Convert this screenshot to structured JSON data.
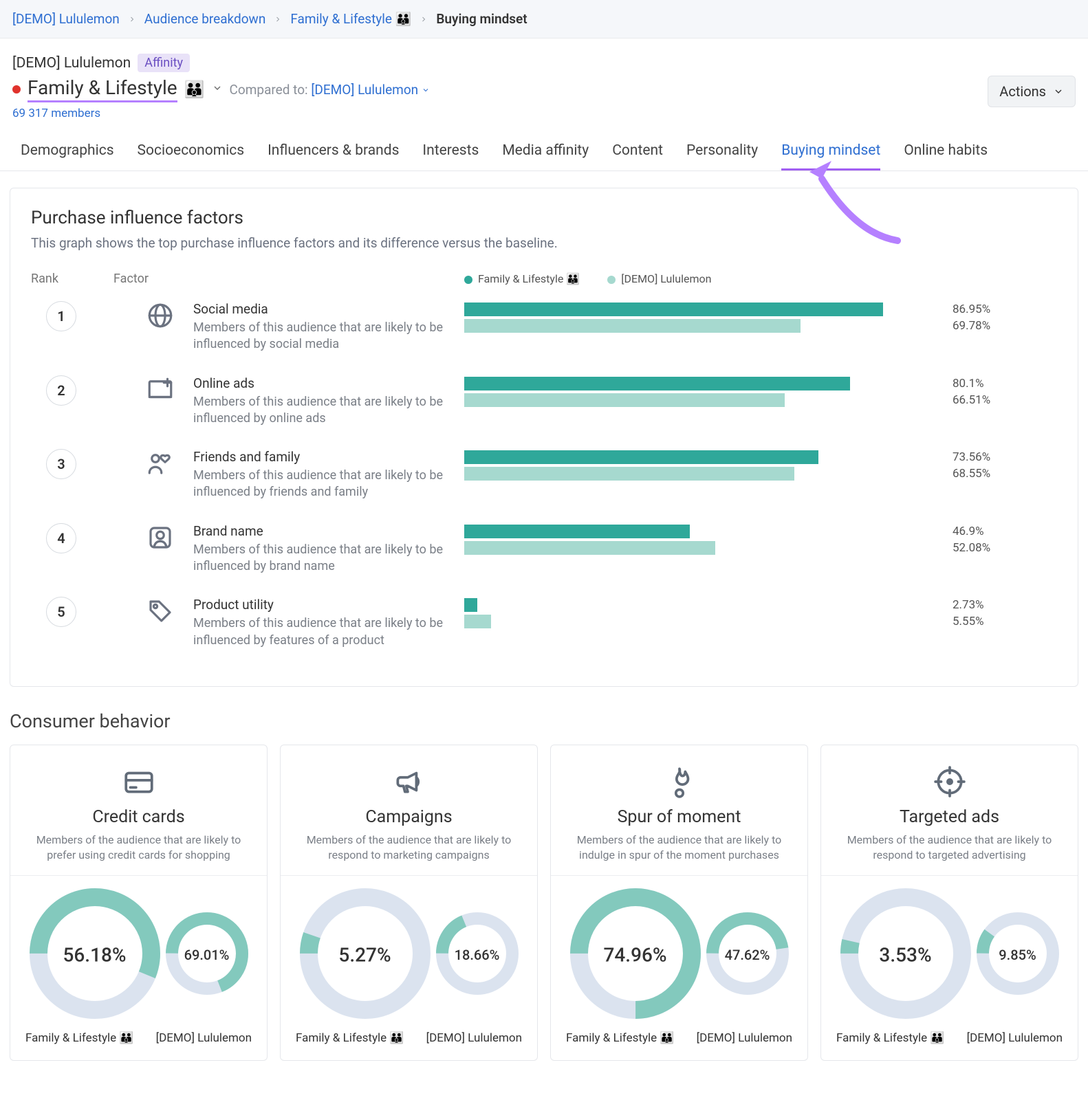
{
  "colors": {
    "primary": "#2fa89a",
    "secondary": "#a6d9cf",
    "link": "#2f6fd1",
    "purple_accent": "#b580ff",
    "donut_track": "#dbe3ef",
    "donut_fill": "#83c9bd",
    "card_icon": "#616b78"
  },
  "breadcrumb": {
    "items": [
      {
        "label": "[DEMO] Lululemon"
      },
      {
        "label": "Audience breakdown"
      },
      {
        "label": "Family & Lifestyle 👪"
      },
      {
        "label": "Buying mindset",
        "active": true
      }
    ]
  },
  "header": {
    "brand": "[DEMO] Lululemon",
    "chip": "Affinity",
    "segment": "Family & Lifestyle",
    "segment_emoji": "👪",
    "compared_label": "Compared to:",
    "baseline": "[DEMO] Lululemon",
    "members": "69 317 members",
    "actions_label": "Actions"
  },
  "tabs": [
    {
      "label": "Demographics"
    },
    {
      "label": "Socioeconomics"
    },
    {
      "label": "Influencers & brands"
    },
    {
      "label": "Interests"
    },
    {
      "label": "Media affinity"
    },
    {
      "label": "Content"
    },
    {
      "label": "Personality"
    },
    {
      "label": "Buying mindset",
      "active": true
    },
    {
      "label": "Online habits"
    }
  ],
  "pif": {
    "title": "Purchase influence factors",
    "subtitle": "This graph shows the top purchase influence factors and its difference versus the baseline.",
    "col_rank": "Rank",
    "col_factor": "Factor",
    "legend_a": "Family & Lifestyle 👪",
    "legend_b": "[DEMO] Lululemon",
    "bar_max": 100,
    "rows": [
      {
        "rank": "1",
        "icon": "globe",
        "name": "Social media",
        "desc": "Members of this audience that are likely to be influenced by social media",
        "a": 86.95,
        "b": 69.78,
        "a_label": "86.95%",
        "b_label": "69.78%"
      },
      {
        "rank": "2",
        "icon": "monitor-plus",
        "name": "Online ads",
        "desc": "Members of this audience that are likely to be influenced by online ads",
        "a": 80.1,
        "b": 66.51,
        "a_label": "80.1%",
        "b_label": "66.51%"
      },
      {
        "rank": "3",
        "icon": "people-heart",
        "name": "Friends and family",
        "desc": "Members of this audience that are likely to be influenced by friends and family",
        "a": 73.56,
        "b": 68.55,
        "a_label": "73.56%",
        "b_label": "68.55%"
      },
      {
        "rank": "4",
        "icon": "badge-user",
        "name": "Brand name",
        "desc": "Members of this audience that are likely to be influenced by brand name",
        "a": 46.9,
        "b": 52.08,
        "a_label": "46.9%",
        "b_label": "52.08%"
      },
      {
        "rank": "5",
        "icon": "tag",
        "name": "Product utility",
        "desc": "Members of this audience that are likely to be influenced by features of a product",
        "a": 2.73,
        "b": 5.55,
        "a_label": "2.73%",
        "b_label": "5.55%"
      }
    ]
  },
  "consumer_behavior": {
    "title": "Consumer behavior",
    "legend_a": "Family & Lifestyle 👪",
    "legend_b": "[DEMO] Lululemon",
    "cards": [
      {
        "icon": "credit-card",
        "name": "Credit cards",
        "desc": "Members of the audience that are likely to prefer using credit cards for shopping",
        "a": 56.18,
        "b": 69.01,
        "a_label": "56.18%",
        "b_label": "69.01%"
      },
      {
        "icon": "megaphone",
        "name": "Campaigns",
        "desc": "Members of the audience that are likely to respond to marketing campaigns",
        "a": 5.27,
        "b": 18.66,
        "a_label": "5.27%",
        "b_label": "18.66%"
      },
      {
        "icon": "flame",
        "name": "Spur of moment",
        "desc": "Members of the audience that are likely to indulge in spur of the moment purchases",
        "a": 74.96,
        "b": 47.62,
        "a_label": "74.96%",
        "b_label": "47.62%"
      },
      {
        "icon": "target",
        "name": "Targeted ads",
        "desc": "Members of the audience that are likely to respond to targeted advertising",
        "a": 3.53,
        "b": 9.85,
        "a_label": "3.53%",
        "b_label": "9.85%"
      }
    ]
  }
}
